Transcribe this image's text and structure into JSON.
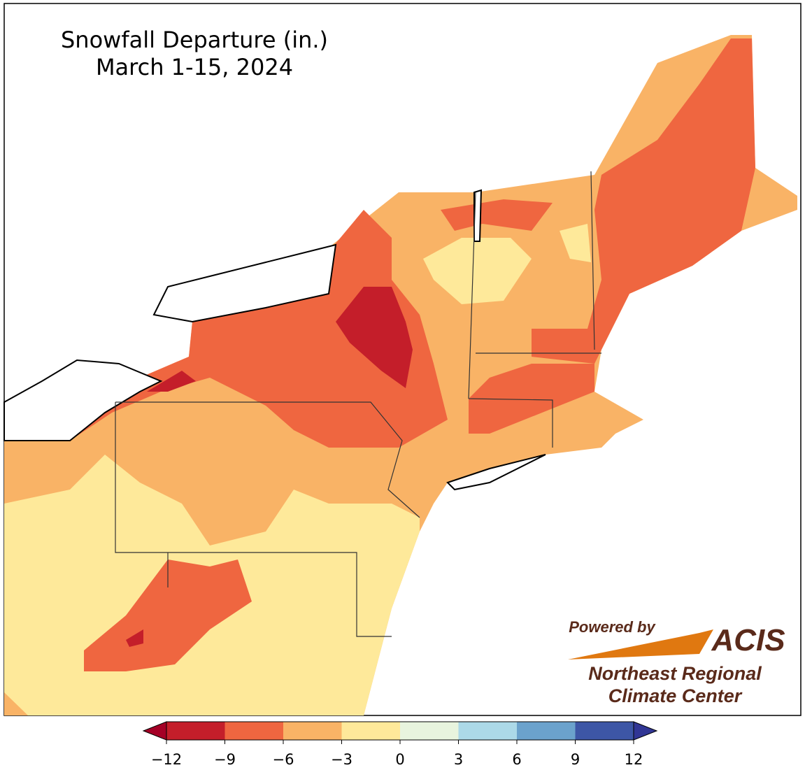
{
  "title": [
    "Snowfall Departure (in.)",
    "March 1-15, 2024"
  ],
  "colorbar": {
    "ticks": [
      {
        "value": -12,
        "label": "−12"
      },
      {
        "value": -9,
        "label": "−9"
      },
      {
        "value": -6,
        "label": "−6"
      },
      {
        "value": -3,
        "label": "−3"
      },
      0,
      3,
      6,
      9,
      12
    ],
    "colors": [
      "#c41e2a",
      "#ef6640",
      "#f9b366",
      "#fee99a",
      "#e8f4de",
      "#acd9e8",
      "#6ba2cc",
      "#3d56a6"
    ],
    "under_color": "#a50026",
    "over_color": "#313695"
  },
  "logo": {
    "tagline": "Powered by",
    "name": "ACIS",
    "org": [
      "Northeast Regional",
      "Climate Center"
    ]
  }
}
